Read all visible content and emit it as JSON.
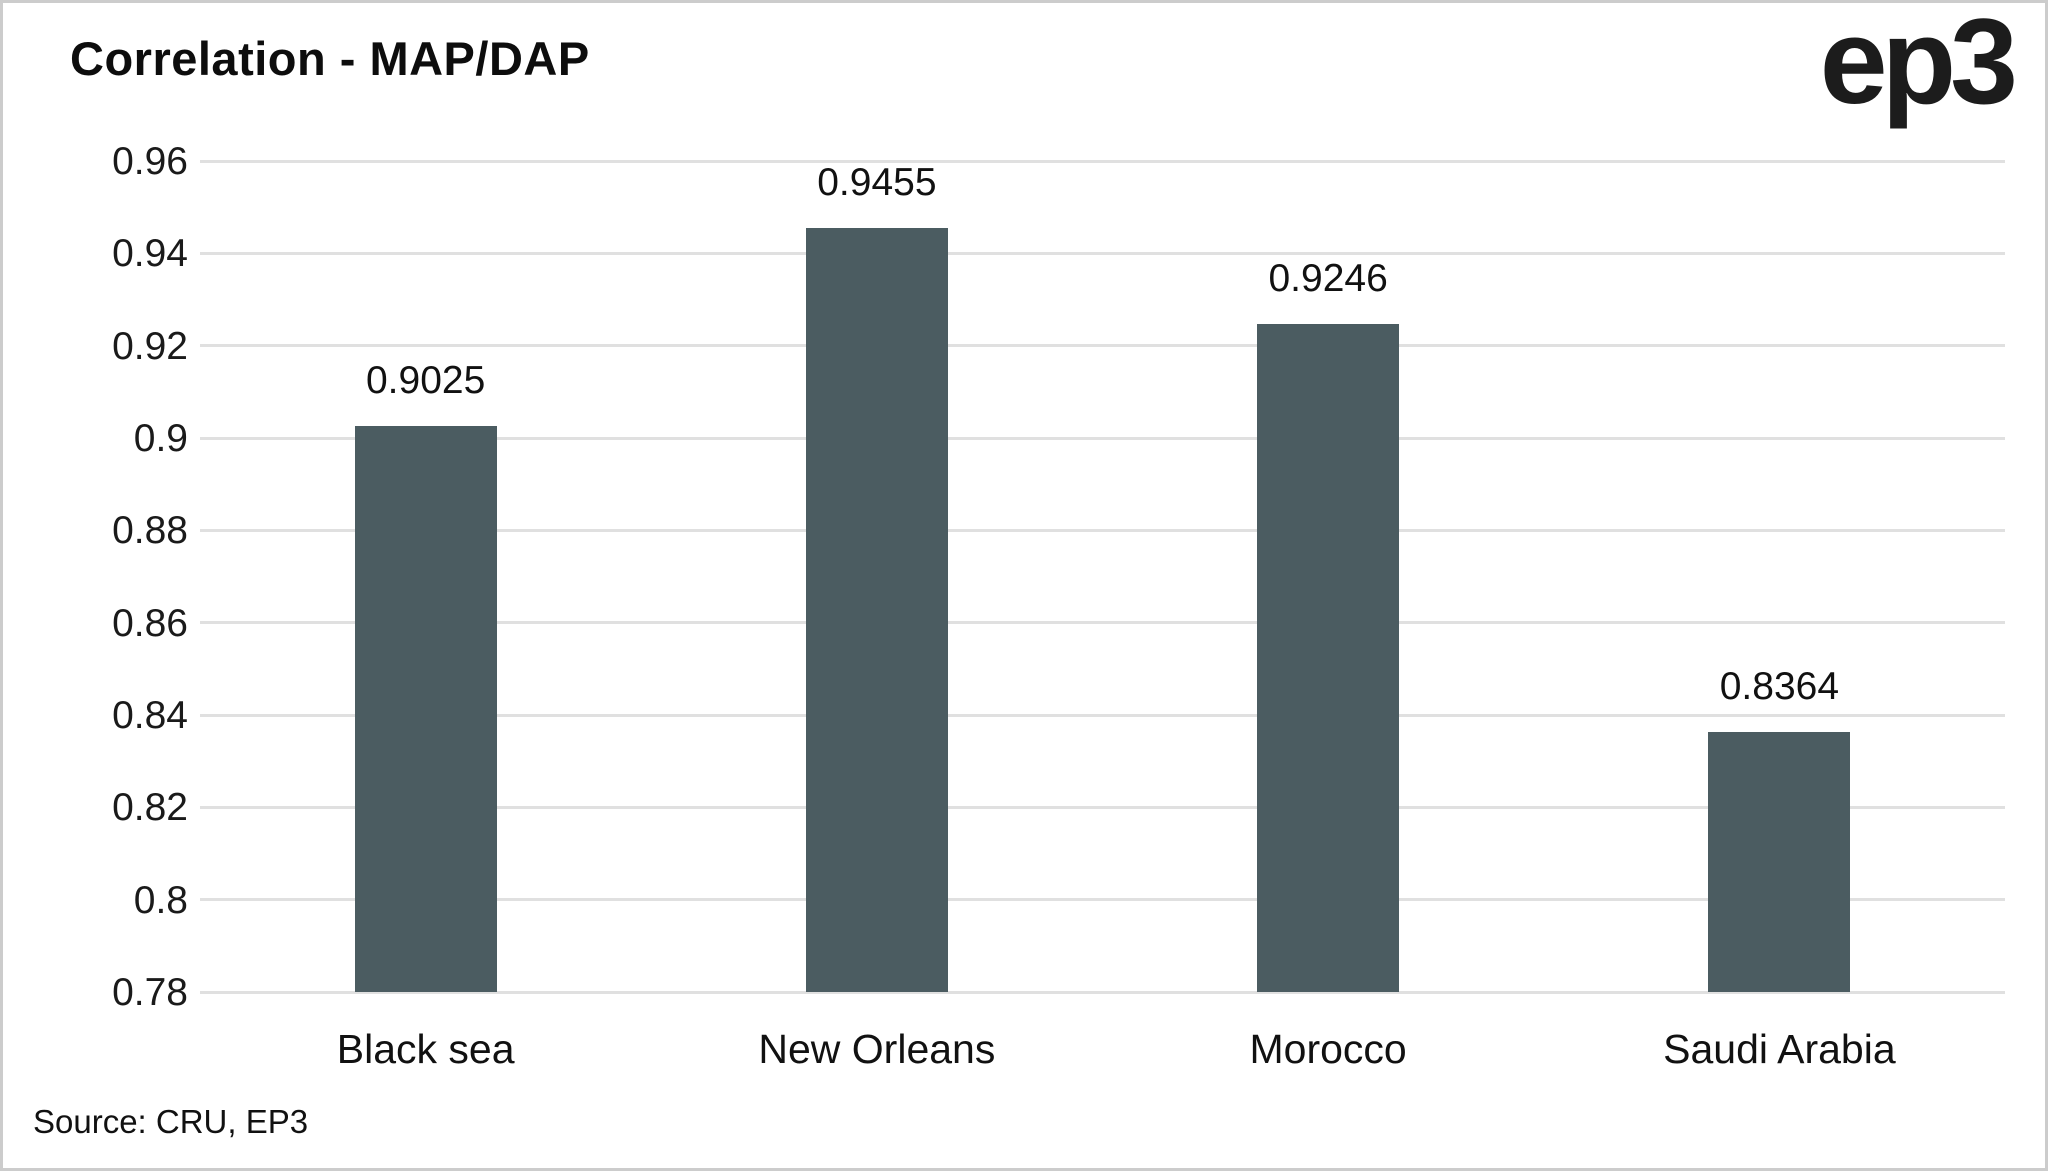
{
  "header": {
    "title": "Correlation - MAP/DAP",
    "logo_text": "ep3"
  },
  "footer": {
    "source": "Source: CRU, EP3"
  },
  "colors": {
    "bar": "#4b5c61",
    "gridline": "#e0e0e0",
    "text": "#111111",
    "frame_border": "#cccccc",
    "background": "#ffffff"
  },
  "chart_data": {
    "type": "bar",
    "title": "Correlation - MAP/DAP",
    "categories": [
      "Black sea",
      "New Orleans",
      "Morocco",
      "Saudi Arabia"
    ],
    "values": [
      0.9025,
      0.9455,
      0.9246,
      0.8364
    ],
    "value_labels": [
      "0.9025",
      "0.9455",
      "0.9246",
      "0.8364"
    ],
    "xlabel": "",
    "ylabel": "",
    "ylim": [
      0.78,
      0.96
    ],
    "ytick_step": 0.02,
    "ytick_labels": [
      "0.96",
      "0.94",
      "0.92",
      "0.9",
      "0.88",
      "0.86",
      "0.84",
      "0.82",
      "0.8",
      "0.78"
    ],
    "grid": true,
    "legend": false
  }
}
